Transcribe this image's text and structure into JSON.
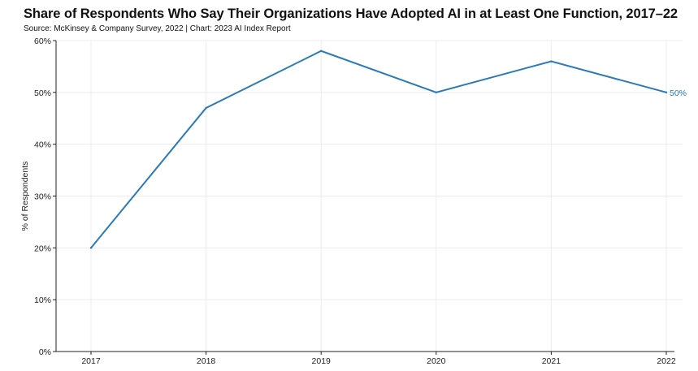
{
  "header": {
    "title": "Share of Respondents Who Say Their Organizations Have Adopted AI in at Least One Function, 2017–22",
    "subtitle": "Source: McKinsey & Company Survey, 2022 | Chart: 2023 AI Index Report"
  },
  "chart_data": {
    "type": "line",
    "title": "Share of Respondents Who Say Their Organizations Have Adopted AI in at Least One Function, 2017–22",
    "subtitle": "Source: McKinsey & Company Survey, 2022 | Chart: 2023 AI Index Report",
    "xlabel": "",
    "ylabel": "% of Respondents",
    "categories": [
      "2017",
      "2018",
      "2019",
      "2020",
      "2021",
      "2022"
    ],
    "series": [
      {
        "values": [
          20,
          47,
          58,
          50,
          56,
          50
        ],
        "color": "#2a7ab8"
      }
    ],
    "yticks": [
      0,
      10,
      20,
      30,
      40,
      50,
      60
    ],
    "ytick_labels": [
      "0%",
      "10%",
      "20%",
      "30%",
      "40%",
      "50%",
      "60%"
    ],
    "ylim": [
      0,
      60
    ],
    "end_label": "50%",
    "grid": true,
    "grid_color": "#ececec",
    "line_color": "#2a7ab8",
    "axis_color": "#222222"
  }
}
